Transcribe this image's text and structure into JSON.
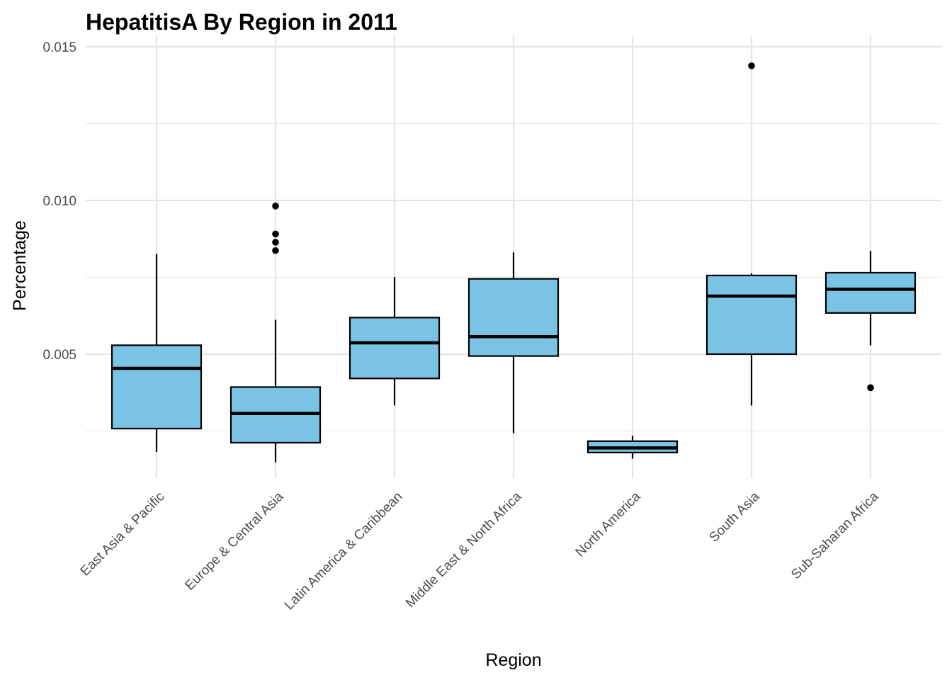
{
  "chart_data": {
    "type": "boxplot",
    "title": "HepatitisA By Region in 2011",
    "xlabel": "Region",
    "ylabel": "Percentage",
    "ylim": [
      0.0008,
      0.0154
    ],
    "y_ticks": [
      0.005,
      0.01,
      0.015
    ],
    "y_tick_labels": [
      "0.005",
      "0.010",
      "0.015"
    ],
    "y_minor_ticks": [
      0.0025,
      0.0075,
      0.0125
    ],
    "grid": true,
    "legend": "none",
    "box_fill": "#7bc3e5",
    "box_stroke": "#000000",
    "categories": [
      "East Asia & Pacific",
      "Europe & Central Asia",
      "Latin America & Caribbean",
      "Middle East & North Africa",
      "North America",
      "South Asia",
      "Sub-Saharan Africa"
    ],
    "boxes": [
      {
        "whisker_low": 0.00182,
        "q1": 0.00258,
        "median": 0.00454,
        "q3": 0.00529,
        "whisker_high": 0.00826,
        "outliers": []
      },
      {
        "whisker_low": 0.00148,
        "q1": 0.00212,
        "median": 0.00307,
        "q3": 0.00393,
        "whisker_high": 0.00612,
        "outliers": [
          0.00982,
          0.00891,
          0.00864,
          0.00837
        ]
      },
      {
        "whisker_low": 0.00333,
        "q1": 0.00421,
        "median": 0.00537,
        "q3": 0.00619,
        "whisker_high": 0.00751,
        "outliers": []
      },
      {
        "whisker_low": 0.00243,
        "q1": 0.00494,
        "median": 0.00557,
        "q3": 0.00745,
        "whisker_high": 0.00831,
        "outliers": []
      },
      {
        "whisker_low": 0.0016,
        "q1": 0.0018,
        "median": 0.00195,
        "q3": 0.00217,
        "whisker_high": 0.00235,
        "outliers": []
      },
      {
        "whisker_low": 0.00333,
        "q1": 0.005,
        "median": 0.00689,
        "q3": 0.00756,
        "whisker_high": 0.00763,
        "outliers": [
          0.01438
        ]
      },
      {
        "whisker_low": 0.00529,
        "q1": 0.00634,
        "median": 0.00711,
        "q3": 0.00765,
        "whisker_high": 0.00836,
        "outliers": [
          0.00391
        ]
      }
    ]
  }
}
